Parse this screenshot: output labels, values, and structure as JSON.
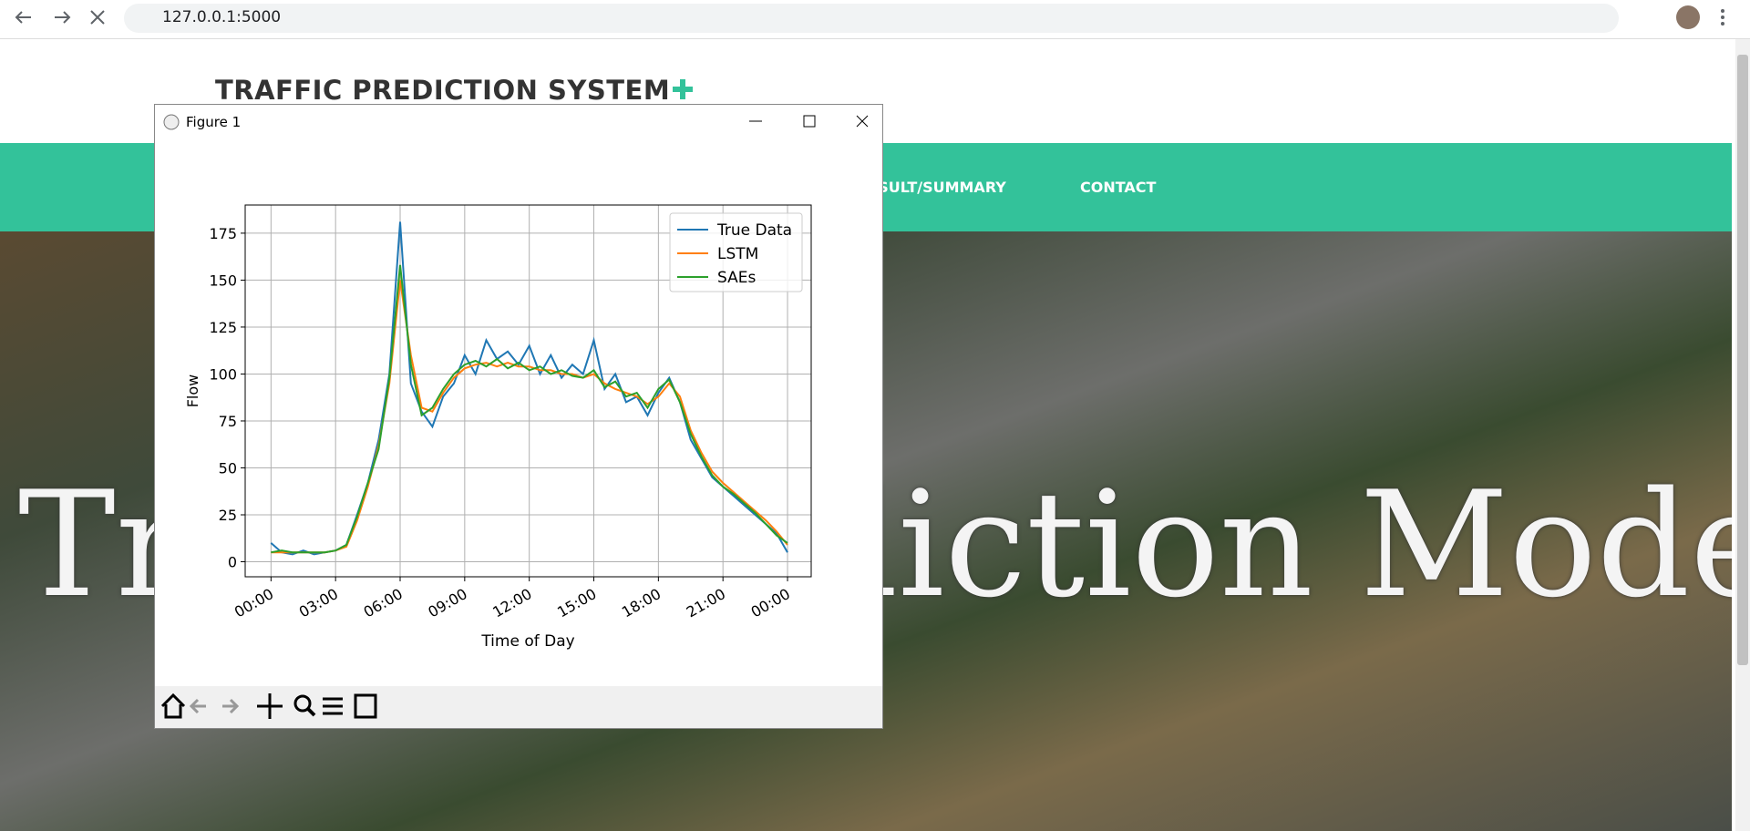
{
  "browser": {
    "url": "127.0.0.1:5000"
  },
  "site": {
    "title": "TRAFFIC PREDICTION SYSTEM",
    "nav": [
      "RESULT/SUMMARY",
      "CONTACT"
    ],
    "hero": "Traffic Prediction Model"
  },
  "window": {
    "title": "Figure 1"
  },
  "chart_data": {
    "type": "line",
    "xlabel": "Time of Day",
    "ylabel": "Flow",
    "x": [
      0,
      0.5,
      1,
      1.5,
      2,
      2.5,
      3,
      3.5,
      4,
      4.5,
      5,
      5.5,
      6,
      6.5,
      7,
      7.5,
      8,
      8.5,
      9,
      9.5,
      10,
      10.5,
      11,
      11.5,
      12,
      12.5,
      13,
      13.5,
      14,
      14.5,
      15,
      15.5,
      16,
      16.5,
      17,
      17.5,
      18,
      18.5,
      19,
      19.5,
      20,
      20.5,
      21,
      21.5,
      22,
      22.5,
      23,
      23.5,
      24
    ],
    "series": [
      {
        "name": "True Data",
        "color": "#1f77b4",
        "values": [
          10,
          5,
          4,
          6,
          4,
          5,
          6,
          9,
          25,
          42,
          65,
          100,
          181,
          95,
          80,
          72,
          88,
          95,
          110,
          100,
          118,
          108,
          112,
          105,
          115,
          100,
          110,
          98,
          105,
          100,
          118,
          92,
          100,
          85,
          88,
          78,
          90,
          98,
          85,
          65,
          55,
          45,
          40,
          35,
          30,
          25,
          20,
          15,
          5
        ]
      },
      {
        "name": "LSTM",
        "color": "#ff7f0e",
        "values": [
          5,
          5,
          5,
          5,
          5,
          5,
          6,
          8,
          22,
          40,
          62,
          95,
          150,
          110,
          82,
          80,
          90,
          98,
          103,
          105,
          106,
          104,
          106,
          104,
          104,
          102,
          102,
          100,
          100,
          98,
          100,
          95,
          92,
          90,
          88,
          84,
          88,
          95,
          88,
          70,
          58,
          48,
          42,
          37,
          32,
          27,
          22,
          16,
          9
        ]
      },
      {
        "name": "SAEs",
        "color": "#2ca02c",
        "values": [
          5,
          6,
          5,
          5,
          5,
          5,
          6,
          9,
          24,
          42,
          60,
          98,
          158,
          105,
          78,
          82,
          92,
          100,
          105,
          107,
          104,
          108,
          103,
          106,
          102,
          104,
          100,
          102,
          99,
          98,
          102,
          93,
          96,
          88,
          90,
          82,
          92,
          97,
          85,
          68,
          56,
          46,
          40,
          36,
          31,
          26,
          20,
          14,
          10
        ]
      }
    ],
    "xlim": [
      -1.2,
      25.1
    ],
    "ylim": [
      -8,
      190
    ],
    "xticks": [
      {
        "value": 0,
        "label": "00:00"
      },
      {
        "value": 3,
        "label": "03:00"
      },
      {
        "value": 6,
        "label": "06:00"
      },
      {
        "value": 9,
        "label": "09:00"
      },
      {
        "value": 12,
        "label": "12:00"
      },
      {
        "value": 15,
        "label": "15:00"
      },
      {
        "value": 18,
        "label": "18:00"
      },
      {
        "value": 21,
        "label": "21:00"
      },
      {
        "value": 24,
        "label": "00:00"
      }
    ],
    "yticks": [
      0,
      25,
      50,
      75,
      100,
      125,
      150,
      175
    ],
    "grid": true,
    "legend": "upper right"
  }
}
